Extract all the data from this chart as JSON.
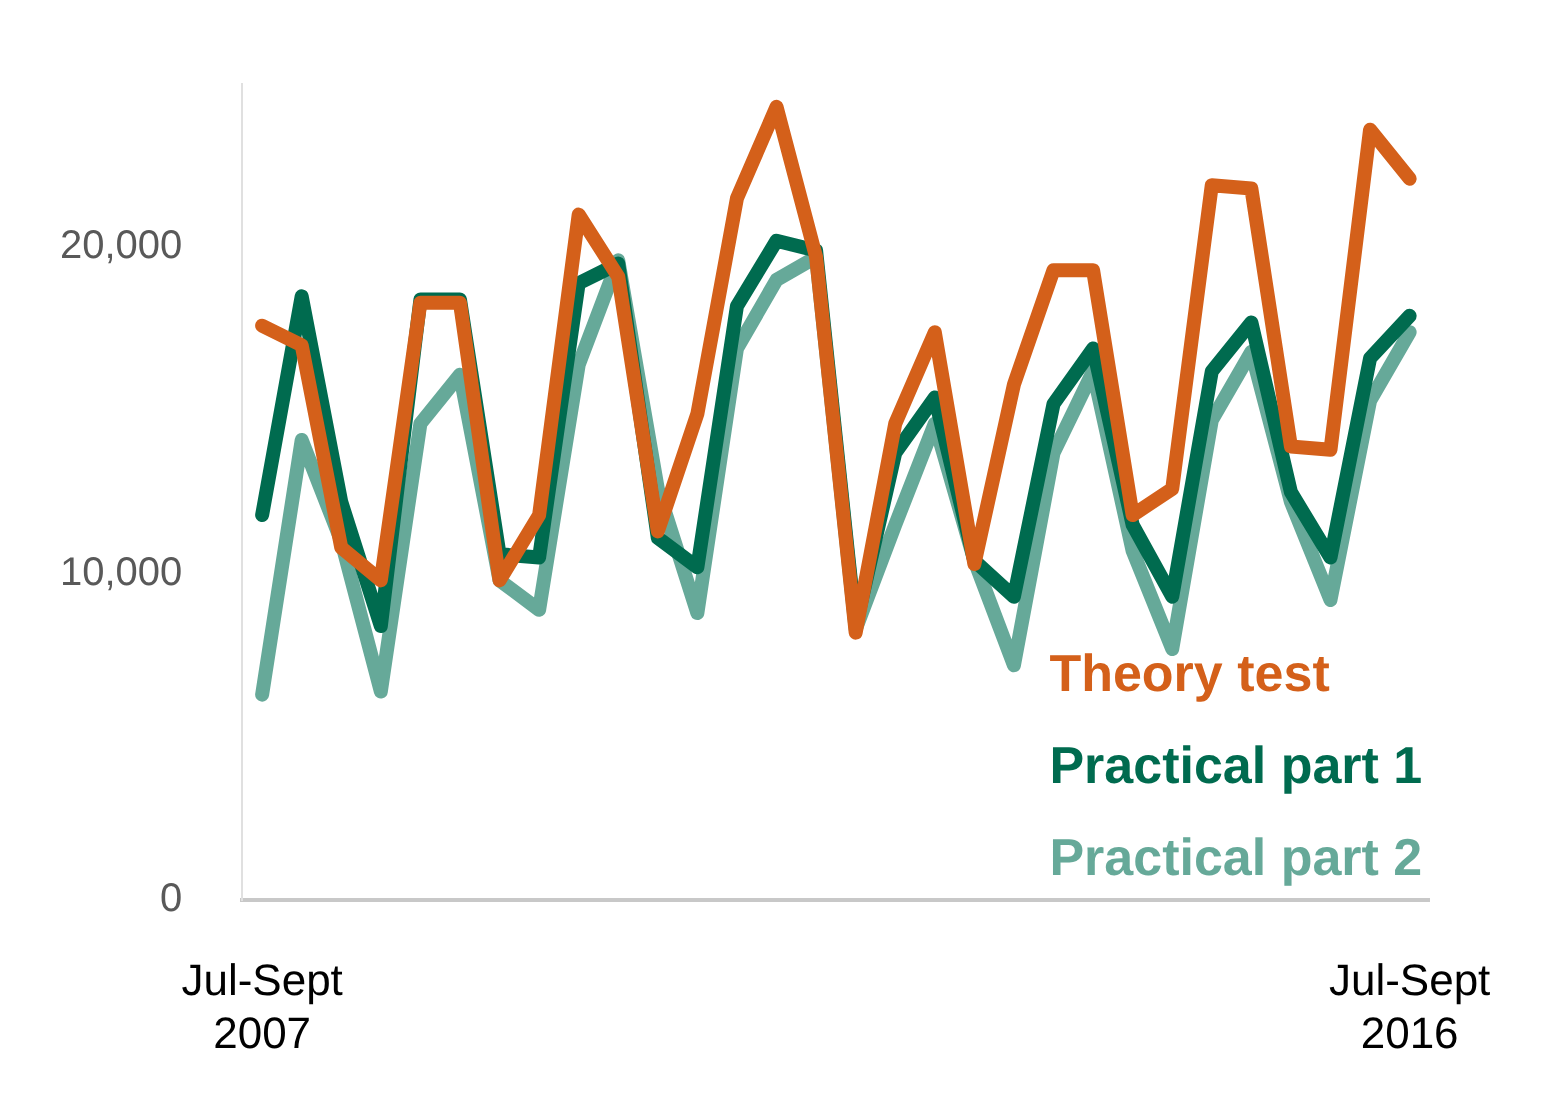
{
  "chart_data": {
    "type": "line",
    "categories": [
      "Jul-Sept 2007",
      null,
      null,
      null,
      null,
      null,
      null,
      null,
      null,
      null,
      null,
      null,
      null,
      null,
      null,
      null,
      null,
      null,
      null,
      null,
      null,
      null,
      null,
      null,
      null,
      null,
      null,
      null,
      null,
      "Jul-Sept 2016"
    ],
    "series": [
      {
        "name": "Theory test",
        "color": "#d4601a",
        "values": [
          17600,
          17000,
          10800,
          9800,
          18300,
          18300,
          9800,
          11800,
          21000,
          19100,
          11300,
          14900,
          21500,
          24300,
          19700,
          8200,
          14600,
          17400,
          10300,
          15800,
          19300,
          19300,
          11800,
          12600,
          21900,
          21800,
          13900,
          13800,
          23600,
          22100
        ]
      },
      {
        "name": "Practical part 1",
        "color": "#006b4f",
        "values": [
          11800,
          18500,
          12200,
          8400,
          18400,
          18400,
          10600,
          10500,
          18900,
          19500,
          11100,
          10200,
          18200,
          20200,
          19900,
          8400,
          13700,
          15400,
          10400,
          9300,
          15200,
          16900,
          11500,
          9300,
          16200,
          17700,
          12500,
          10500,
          16600,
          17900
        ]
      },
      {
        "name": "Practical part 2",
        "color": "#66a999",
        "values": [
          6300,
          14100,
          11000,
          6400,
          14600,
          16100,
          9800,
          8900,
          16400,
          19600,
          12600,
          8800,
          16900,
          19000,
          19700,
          8300,
          11500,
          14600,
          10400,
          7200,
          13700,
          16200,
          10700,
          7700,
          14700,
          16800,
          12200,
          9200,
          15300,
          17400
        ]
      }
    ],
    "yticks": [
      {
        "value": 0,
        "label": "0"
      },
      {
        "value": 10000,
        "label": "10,000"
      },
      {
        "value": 20000,
        "label": "20,000"
      }
    ],
    "ylim": [
      0,
      25000
    ],
    "grid": false,
    "legend": "bottom right",
    "marker": "none",
    "line_style": "solid"
  }
}
